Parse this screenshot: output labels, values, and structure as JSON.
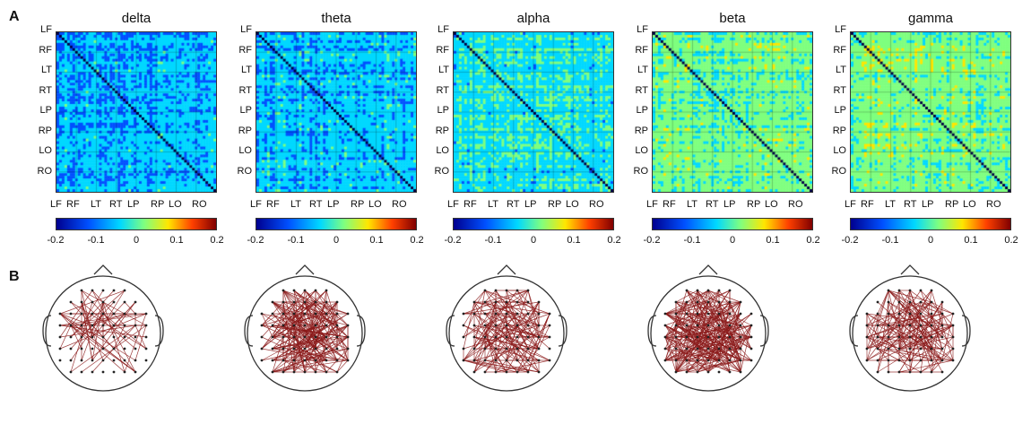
{
  "panel_labels": {
    "a": "A",
    "b": "B"
  },
  "chart_data": [
    {
      "type": "heatmap",
      "title": "delta",
      "y_tick_labels": [
        "LF",
        "RF",
        "LT",
        "RT",
        "LP",
        "RP",
        "LO",
        "RO"
      ],
      "x_tick_labels": [
        "LF",
        "RF",
        "LT",
        "RT",
        "LP",
        "RP",
        "LO",
        "RO"
      ],
      "colorbar": {
        "ticks": [
          "-0.2",
          "-0.1",
          "0",
          "0.1",
          "0.2"
        ],
        "range": [
          -0.2,
          0.2
        ]
      }
    },
    {
      "type": "heatmap",
      "title": "theta",
      "y_tick_labels": [
        "LF",
        "RF",
        "LT",
        "RT",
        "LP",
        "RP",
        "LO",
        "RO"
      ],
      "x_tick_labels": [
        "LF",
        "RF",
        "LT",
        "RT",
        "LP",
        "RP",
        "LO",
        "RO"
      ],
      "colorbar": {
        "ticks": [
          "-0.2",
          "-0.1",
          "0",
          "0.1",
          "0.2"
        ],
        "range": [
          -0.2,
          0.2
        ]
      }
    },
    {
      "type": "heatmap",
      "title": "alpha",
      "y_tick_labels": [
        "LF",
        "RF",
        "LT",
        "RT",
        "LP",
        "RP",
        "LO",
        "RO"
      ],
      "x_tick_labels": [
        "LF",
        "RF",
        "LT",
        "RT",
        "LP",
        "RP",
        "LO",
        "RO"
      ],
      "colorbar": {
        "ticks": [
          "-0.2",
          "-0.1",
          "0",
          "0.1",
          "0.2"
        ],
        "range": [
          -0.2,
          0.2
        ]
      }
    },
    {
      "type": "heatmap",
      "title": "beta",
      "y_tick_labels": [
        "LF",
        "RF",
        "LT",
        "RT",
        "LP",
        "RP",
        "LO",
        "RO"
      ],
      "x_tick_labels": [
        "LF",
        "RF",
        "LT",
        "RT",
        "LP",
        "RP",
        "LO",
        "RO"
      ],
      "colorbar": {
        "ticks": [
          "-0.2",
          "-0.1",
          "0",
          "0.1",
          "0.2"
        ],
        "range": [
          -0.2,
          0.2
        ]
      }
    },
    {
      "type": "heatmap",
      "title": "gamma",
      "y_tick_labels": [
        "LF",
        "RF",
        "LT",
        "RT",
        "LP",
        "RP",
        "LO",
        "RO"
      ],
      "x_tick_labels": [
        "LF",
        "RF",
        "LT",
        "RT",
        "LP",
        "RP",
        "LO",
        "RO"
      ],
      "colorbar": {
        "ticks": [
          "-0.2",
          "-0.1",
          "0",
          "0.1",
          "0.2"
        ],
        "range": [
          -0.2,
          0.2
        ]
      }
    }
  ],
  "colors": {
    "edge": "#8b1a1a",
    "node": "#222222",
    "head_outline": "#333333",
    "diagonal": "#000044"
  },
  "colormap": [
    "#00008f",
    "#0050ff",
    "#00d8ff",
    "#7fff7f",
    "#ffe600",
    "#ff4000",
    "#800000"
  ],
  "band_base_levels": [
    0.28,
    0.3,
    0.38,
    0.46,
    0.48
  ],
  "connectivity_density": [
    0.25,
    0.75,
    0.55,
    0.95,
    0.6
  ]
}
